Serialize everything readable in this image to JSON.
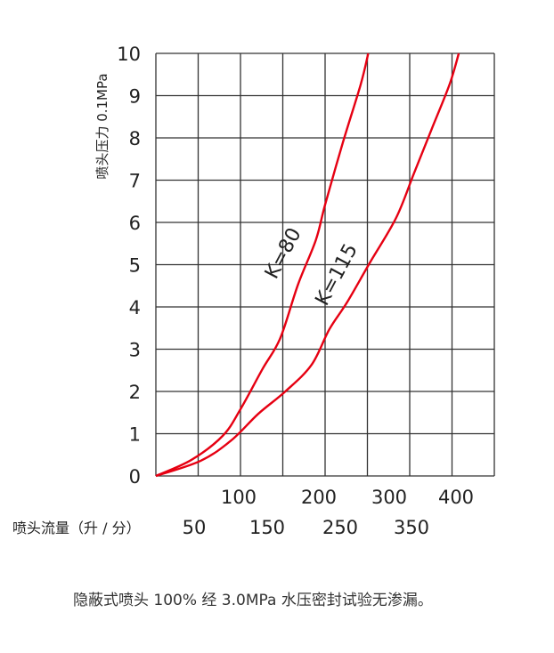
{
  "chart_data": {
    "type": "line",
    "ylabel": "喷头压力 0.1MPa",
    "xlabel": "喷头流量（升 / 分）",
    "xlim": [
      0,
      400
    ],
    "ylim": [
      0,
      10
    ],
    "grid": true,
    "y_ticks": [
      "0",
      "1",
      "2",
      "3",
      "4",
      "5",
      "6",
      "7",
      "8",
      "9",
      "10"
    ],
    "x_ticks_row1": [
      "100",
      "200",
      "300",
      "400"
    ],
    "x_ticks_row2": [
      "50",
      "150",
      "250",
      "350"
    ],
    "series": [
      {
        "name": "K=80",
        "color": "#e60012",
        "x": [
          0,
          42,
          79,
          100,
          126,
          147,
          168,
          189,
          200,
          221,
          242,
          251
        ],
        "y": [
          0,
          0.38,
          0.95,
          1.58,
          2.53,
          3.26,
          4.53,
          5.58,
          6.42,
          7.89,
          9.26,
          10
        ]
      },
      {
        "name": "K=115",
        "color": "#e60012",
        "x": [
          0,
          53,
          89,
          121,
          153,
          184,
          205,
          226,
          253,
          284,
          305,
          326,
          347,
          358
        ],
        "y": [
          0,
          0.36,
          0.84,
          1.47,
          2.0,
          2.63,
          3.47,
          4.11,
          5.05,
          6.11,
          7.16,
          8.21,
          9.26,
          10
        ]
      }
    ]
  },
  "caption": "隐蔽式喷头 100% 经 3.0MPa 水压密封试验无渗漏。"
}
